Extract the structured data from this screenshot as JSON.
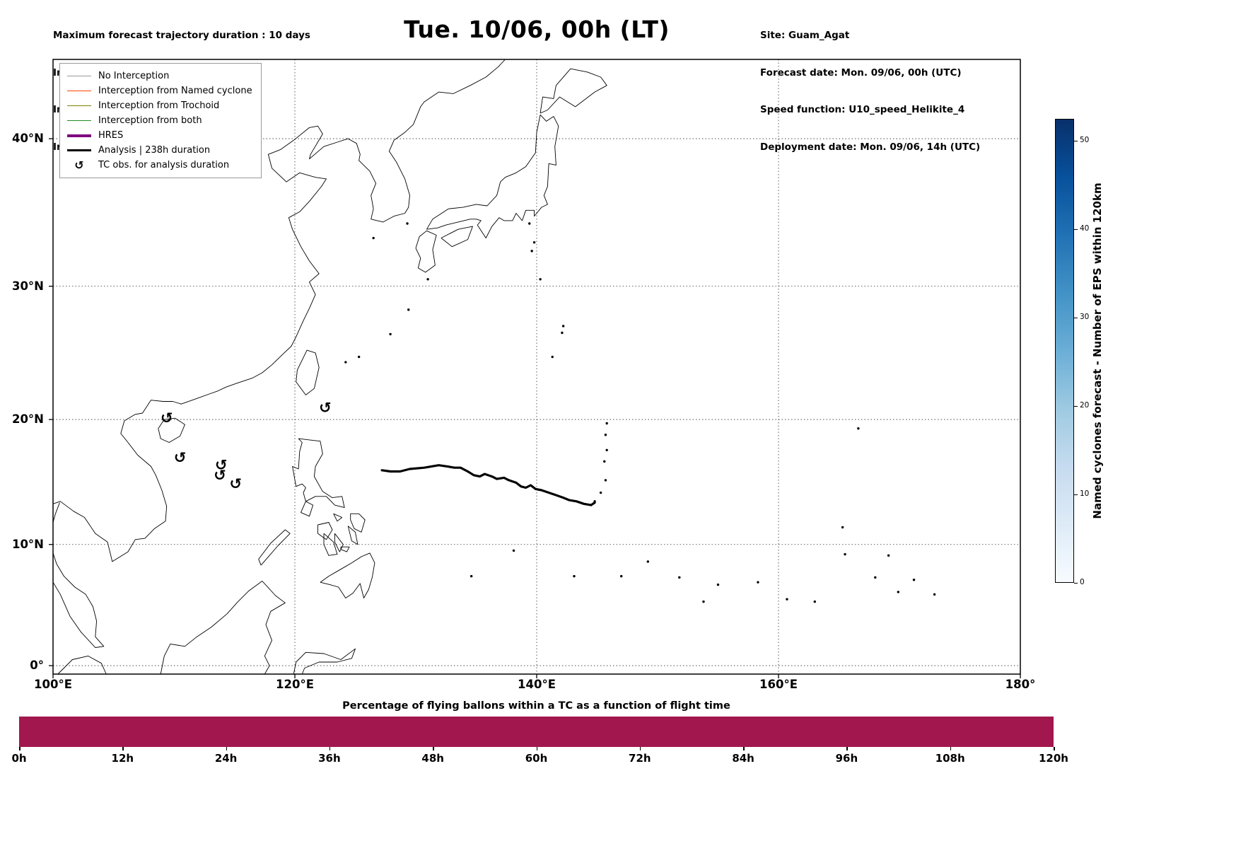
{
  "header": {
    "left_lines": [
      "Maximum forecast trajectory duration : 10 days",
      "Intercept distance: 300km",
      "Intercept RW2 (EPS):  30km/h2",
      "Intercept RW2 (HRES): 30km/h2"
    ],
    "title": "Tue. 10/06, 00h (LT)",
    "right_lines": [
      "Site: Guam_Agat",
      "Forecast date: Mon. 09/06, 00h (UTC)",
      "Speed function: U10_speed_Helikite_4",
      "Deployment date: Mon. 09/06, 14h (UTC)"
    ]
  },
  "legend": {
    "items": [
      {
        "label": "No Interception",
        "style": "line",
        "color": "#999999",
        "width": 1.5
      },
      {
        "label": "Interception from Named cyclone",
        "style": "line",
        "color": "#FF4500",
        "width": 1.5
      },
      {
        "label": "Interception from Trochoid",
        "style": "line",
        "color": "#808000",
        "width": 1.5
      },
      {
        "label": "Interception from both",
        "style": "line",
        "color": "#228B22",
        "width": 1.5
      },
      {
        "label": "HRES",
        "style": "line",
        "color": "#800080",
        "width": 4
      },
      {
        "label": "Analysis | 238h duration",
        "style": "line",
        "color": "#000000",
        "width": 3.5
      },
      {
        "label": "TC obs. for analysis duration",
        "style": "symbol",
        "symbol": "↺"
      }
    ]
  },
  "chart_data": [
    {
      "type": "line",
      "subtype": "map-trajectory",
      "projection": "mercator",
      "title": "Tue. 10/06, 00h (LT)",
      "grid": true,
      "x_axis": {
        "ticks": [
          100,
          120,
          140,
          160,
          180
        ],
        "tick_labels": [
          "100°E",
          "120°E",
          "140°E",
          "160°E",
          "180°"
        ],
        "range": [
          100,
          180
        ]
      },
      "y_axis": {
        "ticks": [
          0,
          10,
          20,
          30,
          40
        ],
        "tick_labels": [
          "0°",
          "10°N",
          "20°N",
          "30°N",
          "40°N"
        ],
        "range": [
          -0.7,
          44.85
        ]
      },
      "analysis_track": {
        "name": "Analysis | 238h duration",
        "color": "#000000",
        "points_lon_lat": [
          [
            127.2,
            16.0
          ],
          [
            127.9,
            15.9
          ],
          [
            128.7,
            15.9
          ],
          [
            129.5,
            16.1
          ],
          [
            130.7,
            16.2
          ],
          [
            131.9,
            16.4
          ],
          [
            132.6,
            16.3
          ],
          [
            133.2,
            16.2
          ],
          [
            133.7,
            16.2
          ],
          [
            134.3,
            15.9
          ],
          [
            134.8,
            15.6
          ],
          [
            135.3,
            15.5
          ],
          [
            135.7,
            15.7
          ],
          [
            136.3,
            15.5
          ],
          [
            136.7,
            15.3
          ],
          [
            137.3,
            15.4
          ],
          [
            137.7,
            15.2
          ],
          [
            138.3,
            15.0
          ],
          [
            138.7,
            14.7
          ],
          [
            139.1,
            14.6
          ],
          [
            139.5,
            14.8
          ],
          [
            139.9,
            14.5
          ],
          [
            140.4,
            14.4
          ],
          [
            141.0,
            14.2
          ],
          [
            141.6,
            14.0
          ],
          [
            142.2,
            13.8
          ],
          [
            142.7,
            13.6
          ],
          [
            143.3,
            13.5
          ],
          [
            143.9,
            13.3
          ],
          [
            144.5,
            13.2
          ],
          [
            144.8,
            13.4
          ]
        ]
      },
      "tc_observations": {
        "symbol": "↺",
        "points_lon_lat": [
          [
            109.4,
            20.1
          ],
          [
            110.5,
            17.0
          ],
          [
            113.9,
            16.4
          ],
          [
            113.8,
            15.6
          ],
          [
            115.1,
            14.9
          ],
          [
            122.5,
            20.9
          ]
        ]
      },
      "colorbar": {
        "label": "Named cyclones forecast - Number of EPS within 120km",
        "ticks": [
          0,
          10,
          20,
          30,
          40,
          50
        ],
        "range": [
          0,
          52.5
        ],
        "colormap": "Blues",
        "gradient": [
          "#f7fbff",
          "#deebf7",
          "#c6dbef",
          "#9ecae1",
          "#6baed6",
          "#4292c6",
          "#2171b5",
          "#08519c",
          "#08306b"
        ]
      }
    },
    {
      "type": "bar",
      "title": "Percentage of flying ballons within a TC as a function of flight time",
      "x_tick_labels": [
        "0h",
        "12h",
        "24h",
        "36h",
        "48h",
        "60h",
        "72h",
        "84h",
        "96h",
        "108h",
        "120h"
      ],
      "x_range_hours": [
        0,
        120
      ],
      "series": [
        {
          "name": "% flying balloons within a TC",
          "x_hours": [
            0,
            120
          ],
          "y_percent": [
            100,
            100
          ]
        }
      ],
      "bar_color": "#A2174E"
    }
  ]
}
